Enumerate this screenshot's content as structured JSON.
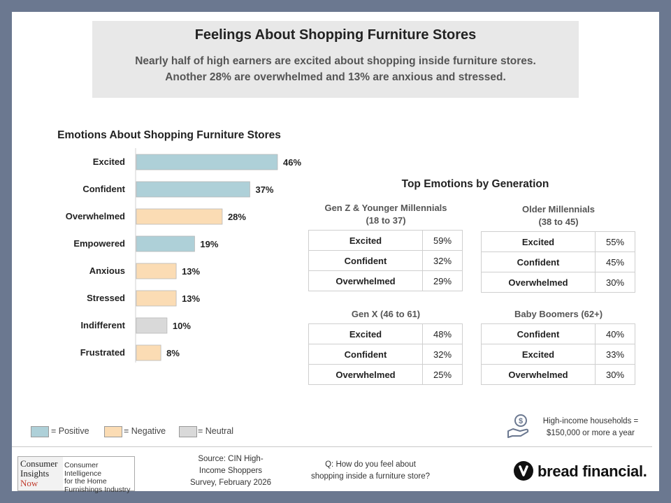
{
  "header": {
    "title": "Feelings About Shopping Furniture Stores",
    "subtitle_line1": "Nearly half of high earners are excited about shopping inside furniture stores.",
    "subtitle_line2": "Another 28% are overwhelmed and 13% are anxious and stressed."
  },
  "chart_data": {
    "type": "bar",
    "orientation": "horizontal",
    "title": "Emotions About Shopping Furniture Stores",
    "categories": [
      "Excited",
      "Confident",
      "Overwhelmed",
      "Empowered",
      "Anxious",
      "Stressed",
      "Indifferent",
      "Frustrated"
    ],
    "values": [
      46,
      37,
      28,
      19,
      13,
      13,
      10,
      8
    ],
    "value_labels": [
      "46%",
      "37%",
      "28%",
      "19%",
      "13%",
      "13%",
      "10%",
      "8%"
    ],
    "sentiment": [
      "positive",
      "positive",
      "negative",
      "positive",
      "negative",
      "negative",
      "neutral",
      "negative"
    ],
    "xlim": [
      0,
      50
    ],
    "xlabel": "",
    "ylabel": "",
    "grid": false
  },
  "colors": {
    "positive": "#aed0d8",
    "negative": "#fbdcb4",
    "neutral": "#d9d9d9"
  },
  "legend": {
    "positive": "= Positive",
    "negative": "= Negative",
    "neutral": "= Neutral"
  },
  "generations": {
    "title": "Top Emotions by Generation",
    "groups": [
      {
        "title_line1": "Gen Z & Younger Millennials",
        "title_line2": "(18 to 37)",
        "rows": [
          {
            "label": "Excited",
            "value": "59%"
          },
          {
            "label": "Confident",
            "value": "32%"
          },
          {
            "label": "Overwhelmed",
            "value": "29%"
          }
        ]
      },
      {
        "title_line1": "Older Millennials",
        "title_line2": "(38 to 45)",
        "rows": [
          {
            "label": "Excited",
            "value": "55%"
          },
          {
            "label": "Confident",
            "value": "45%"
          },
          {
            "label": "Overwhelmed",
            "value": "30%"
          }
        ]
      },
      {
        "title_line1": "Gen X (46 to 61)",
        "title_line2": "",
        "rows": [
          {
            "label": "Excited",
            "value": "48%"
          },
          {
            "label": "Confident",
            "value": "32%"
          },
          {
            "label": "Overwhelmed",
            "value": "25%"
          }
        ]
      },
      {
        "title_line1": "Baby Boomers (62+)",
        "title_line2": "",
        "rows": [
          {
            "label": "Confident",
            "value": "40%"
          },
          {
            "label": "Excited",
            "value": "33%"
          },
          {
            "label": "Overwhelmed",
            "value": "30%"
          }
        ]
      }
    ]
  },
  "note": {
    "icon": "money-hand-icon",
    "line1": "High-income households =",
    "line2": "$150,000 or more a year"
  },
  "footer": {
    "cin_logo_line1": "Consumer",
    "cin_logo_line2": "Insights",
    "cin_logo_line3": "Now",
    "cin_tagline_line1": "Consumer Intelligence",
    "cin_tagline_line2": "for the Home",
    "cin_tagline_line3": "Furnishings Industry",
    "source_line1": "Source: CIN High-",
    "source_line2": "Income Shoppers",
    "source_line3": "Survey, February 2026",
    "question_line1": "Q: How do you feel about",
    "question_line2": "shopping inside a furniture store?",
    "brand": "bread financial",
    "brand_mark": "."
  }
}
